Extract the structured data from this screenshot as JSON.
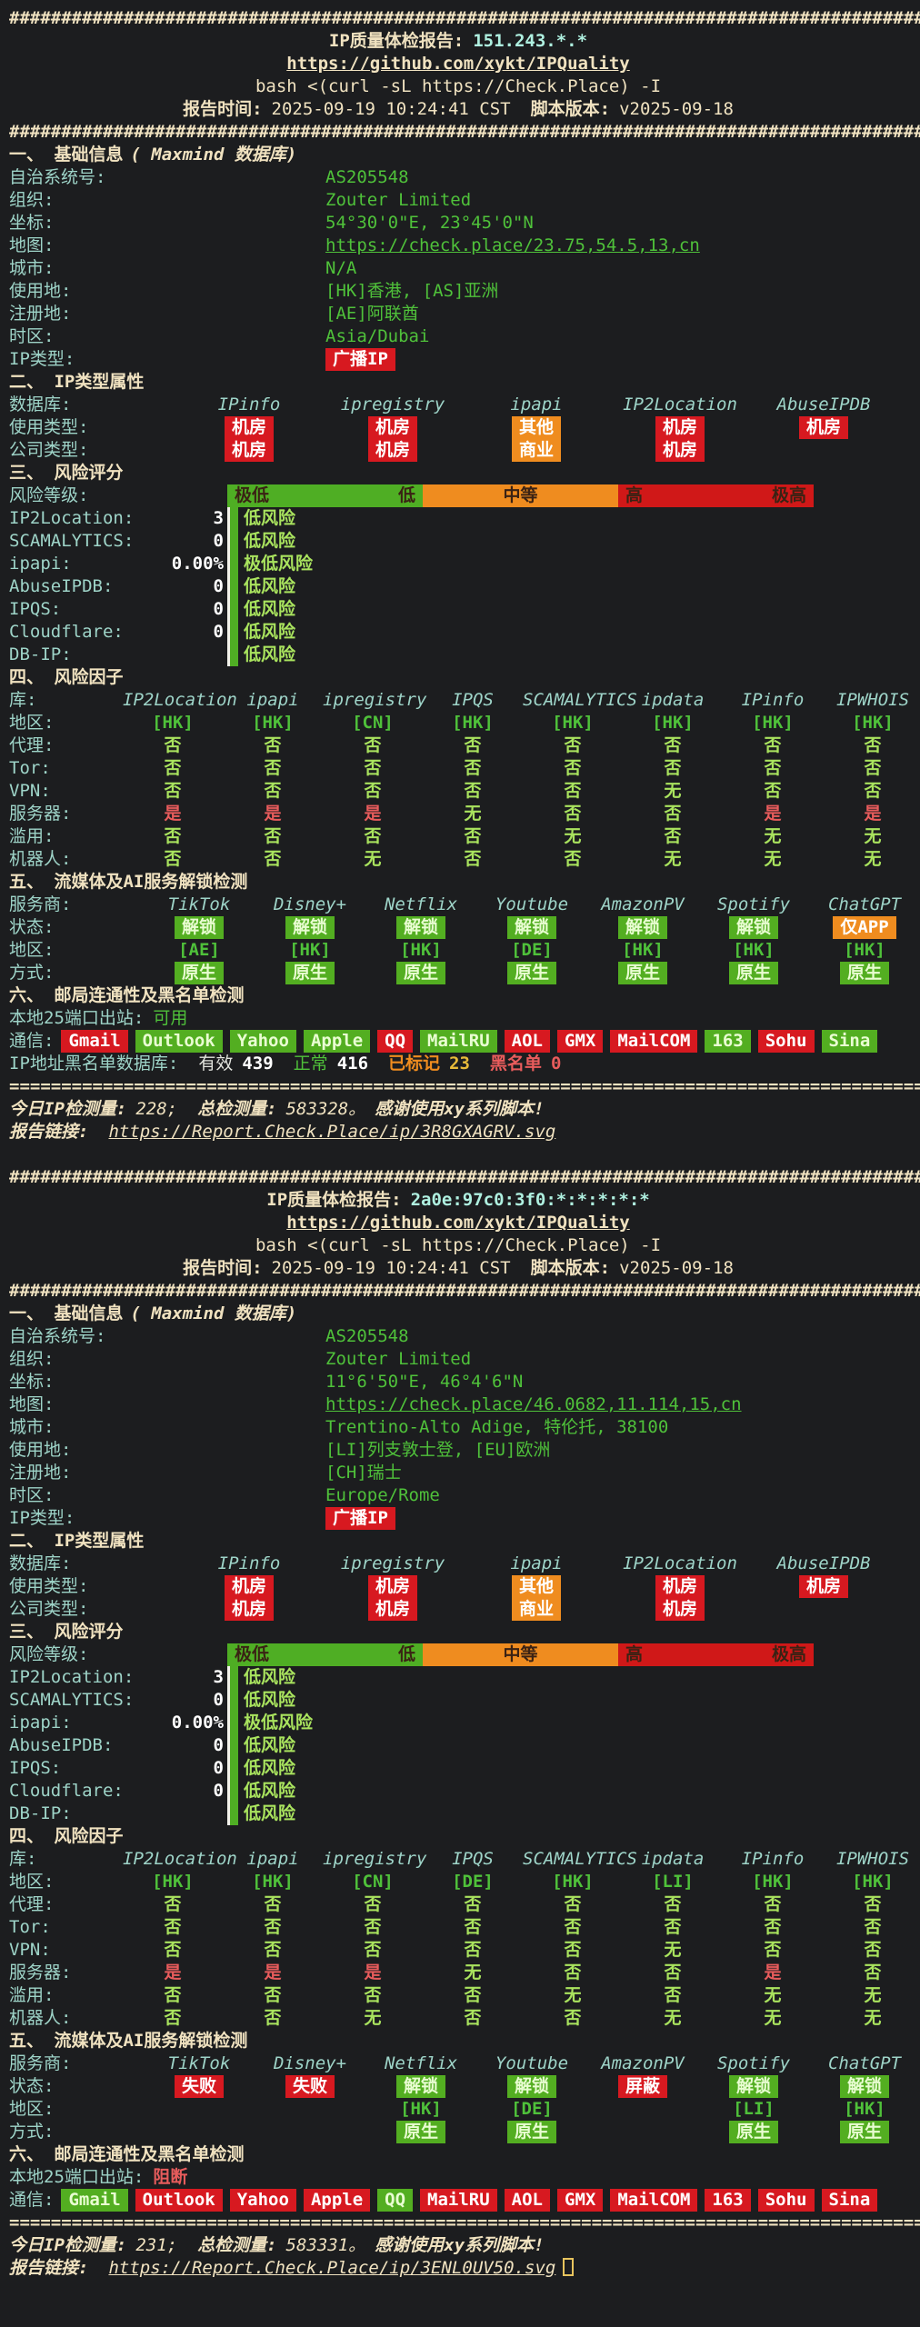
{
  "colors": {
    "background": "#1c1d1f",
    "cream_text": "#f0e2c0",
    "cyan_label": "#9ed4c8",
    "ip_cyan": "#aff0e0",
    "green_value": "#4fc13a",
    "light_green": "#a9e35e",
    "red_badge": "#d71920",
    "orange_badge": "#ef8c1f",
    "green_badge": "#53ae21",
    "bar_green": "#4fae24",
    "bar_orange": "#ef8c1f",
    "bar_red": "#d01818",
    "red_text": "#e85c5c",
    "yellow_value": "#e8bb3a"
  },
  "reports": [
    {
      "hash_line": "########################################################################################",
      "separator": "========================================================================================",
      "title_label": "IP质量体检报告:",
      "ip": "151.243.*.*",
      "repo_link": "https://github.com/xykt/IPQuality",
      "command": "bash <(curl -sL https://Check.Place) -I",
      "time_label": "报告时间:",
      "time": "2025-09-19 10:24:41 CST",
      "version_label": "脚本版本:",
      "version": "v2025-09-18",
      "basic": {
        "heading": "一、 基础信息",
        "heading_note": "( Maxmind 数据库)",
        "rows": [
          {
            "label": "自治系统号:",
            "value": "AS205548"
          },
          {
            "label": "组织:",
            "value": "Zouter Limited"
          },
          {
            "label": "坐标:",
            "value": "54°30'0\"E, 23°45'0\"N"
          },
          {
            "label": "地图:",
            "value": "https://check.place/23.75,54.5,13,cn"
          },
          {
            "label": "城市:",
            "value": "N/A"
          },
          {
            "label": "使用地:",
            "value": "[HK]香港, [AS]亚洲"
          },
          {
            "label": "注册地:",
            "value": "[AE]阿联酋"
          },
          {
            "label": "时区:",
            "value": "Asia/Dubai"
          },
          {
            "label": "IP类型:",
            "badge": "广播IP"
          }
        ]
      },
      "attrs": {
        "heading": "二、 IP类型属性",
        "db_label": "数据库:",
        "databases": [
          "IPinfo",
          "ipregistry",
          "ipapi",
          "IP2Location",
          "AbuseIPDB"
        ],
        "rows": [
          {
            "label": "使用类型:",
            "cells": [
              "机房",
              "机房",
              "其他",
              "机房",
              "机房"
            ]
          },
          {
            "label": "公司类型:",
            "cells": [
              "机房",
              "机房",
              "商业",
              "机房",
              ""
            ]
          }
        ]
      },
      "risk": {
        "heading": "三、 风险评分",
        "scale_label": "风险等级:",
        "scale": [
          {
            "style": "green",
            "left": "极低",
            "right": "低"
          },
          {
            "style": "orange",
            "center": "中等"
          },
          {
            "style": "red",
            "left": "高",
            "right": "极高"
          }
        ],
        "rows": [
          {
            "label": "IP2Location:",
            "score": "3",
            "verdict": "低风险"
          },
          {
            "label": "SCAMALYTICS:",
            "score": "0",
            "verdict": "低风险"
          },
          {
            "label": "ipapi:",
            "score": "0.00%",
            "verdict": "极低风险"
          },
          {
            "label": "AbuseIPDB:",
            "score": "0",
            "verdict": "低风险"
          },
          {
            "label": "IPQS:",
            "score": "0",
            "verdict": "低风险"
          },
          {
            "label": "Cloudflare:",
            "score": "0",
            "verdict": "低风险"
          },
          {
            "label": "DB-IP:",
            "score": "",
            "verdict": "低风险"
          }
        ]
      },
      "factors": {
        "heading": "四、 风险因子",
        "db_label": "库:",
        "databases": [
          "IP2Location",
          "ipapi",
          "ipregistry",
          "IPQS",
          "SCAMALYTICS",
          "ipdata",
          "IPinfo",
          "IPWHOIS"
        ],
        "rows": [
          {
            "label": "地区:",
            "cells": [
              "[HK]",
              "[HK]",
              "[CN]",
              "[HK]",
              "[HK]",
              "[HK]",
              "[HK]",
              "[HK]"
            ]
          },
          {
            "label": "代理:",
            "cells": [
              "否",
              "否",
              "否",
              "否",
              "否",
              "否",
              "否",
              "否"
            ]
          },
          {
            "label": "Tor:",
            "cells": [
              "否",
              "否",
              "否",
              "否",
              "否",
              "否",
              "否",
              "否"
            ]
          },
          {
            "label": "VPN:",
            "cells": [
              "否",
              "否",
              "否",
              "否",
              "否",
              "无",
              "否",
              "否"
            ]
          },
          {
            "label": "服务器:",
            "cells": [
              "是",
              "是",
              "是",
              "无",
              "否",
              "否",
              "是",
              "是"
            ]
          },
          {
            "label": "滥用:",
            "cells": [
              "否",
              "否",
              "否",
              "否",
              "无",
              "否",
              "无",
              "无"
            ]
          },
          {
            "label": "机器人:",
            "cells": [
              "否",
              "否",
              "无",
              "否",
              "否",
              "无",
              "无",
              "无"
            ]
          }
        ]
      },
      "media": {
        "heading": "五、 流媒体及AI服务解锁检测",
        "provider_label": "服务商:",
        "providers": [
          "TikTok",
          "Disney+",
          "Netflix",
          "Youtube",
          "AmazonPV",
          "Spotify",
          "ChatGPT"
        ],
        "rows": [
          {
            "label": "状态:",
            "cells": [
              "解锁",
              "解锁",
              "解锁",
              "解锁",
              "解锁",
              "解锁",
              "仅APP"
            ]
          },
          {
            "label": "地区:",
            "cells": [
              "[AE]",
              "[HK]",
              "[HK]",
              "[DE]",
              "[HK]",
              "[HK]",
              "[HK]"
            ]
          },
          {
            "label": "方式:",
            "cells": [
              "原生",
              "原生",
              "原生",
              "原生",
              "原生",
              "原生",
              "原生"
            ]
          }
        ]
      },
      "mail": {
        "heading": "六、 邮局连通性及黑名单检测",
        "port_label": "本地25端口出站:",
        "port_status": "可用",
        "port_ok": true,
        "comm_label": "通信:",
        "providers": [
          {
            "name": "Gmail",
            "ok": false
          },
          {
            "name": "Outlook",
            "ok": true
          },
          {
            "name": "Yahoo",
            "ok": true
          },
          {
            "name": "Apple",
            "ok": true
          },
          {
            "name": "QQ",
            "ok": false
          },
          {
            "name": "MailRU",
            "ok": true
          },
          {
            "name": "AOL",
            "ok": false
          },
          {
            "name": "GMX",
            "ok": false
          },
          {
            "name": "MailCOM",
            "ok": false
          },
          {
            "name": "163",
            "ok": true
          },
          {
            "name": "Sohu",
            "ok": false
          },
          {
            "name": "Sina",
            "ok": true
          }
        ],
        "blacklist": {
          "label": "IP地址黑名单数据库:",
          "stats": [
            {
              "name": "有效",
              "value": "439",
              "style": "plain"
            },
            {
              "name": "正常",
              "value": "416",
              "style": "green"
            },
            {
              "name": "已标记",
              "value": "23",
              "style": "orange"
            },
            {
              "name": "黑名单",
              "value": "0",
              "style": "red"
            }
          ]
        }
      },
      "footer": {
        "today_label": "今日IP检测量:",
        "today": "228;",
        "total_label": "总检测量:",
        "total": "583328。",
        "thanks": "感谢使用xy系列脚本!",
        "link_label": "报告链接:",
        "link": "https://Report.Check.Place/ip/3R8GXAGRV.svg",
        "cursor": false
      }
    },
    {
      "hash_line": "########################################################################################",
      "separator": "========================================================================================",
      "title_label": "IP质量体检报告:",
      "ip": "2a0e:97c0:3f0:*:*:*:*:*",
      "repo_link": "https://github.com/xykt/IPQuality",
      "command": "bash <(curl -sL https://Check.Place) -I",
      "time_label": "报告时间:",
      "time": "2025-09-19 10:24:41 CST",
      "version_label": "脚本版本:",
      "version": "v2025-09-18",
      "basic": {
        "heading": "一、 基础信息",
        "heading_note": "( Maxmind 数据库)",
        "rows": [
          {
            "label": "自治系统号:",
            "value": "AS205548"
          },
          {
            "label": "组织:",
            "value": "Zouter Limited"
          },
          {
            "label": "坐标:",
            "value": "11°6'50\"E, 46°4'6\"N"
          },
          {
            "label": "地图:",
            "value": "https://check.place/46.0682,11.114,15,cn"
          },
          {
            "label": "城市:",
            "value": "Trentino-Alto Adige, 特伦托, 38100"
          },
          {
            "label": "使用地:",
            "value": "[LI]列支敦士登, [EU]欧洲"
          },
          {
            "label": "注册地:",
            "value": "[CH]瑞士"
          },
          {
            "label": "时区:",
            "value": "Europe/Rome"
          },
          {
            "label": "IP类型:",
            "badge": "广播IP"
          }
        ]
      },
      "attrs": {
        "heading": "二、 IP类型属性",
        "db_label": "数据库:",
        "databases": [
          "IPinfo",
          "ipregistry",
          "ipapi",
          "IP2Location",
          "AbuseIPDB"
        ],
        "rows": [
          {
            "label": "使用类型:",
            "cells": [
              "机房",
              "机房",
              "其他",
              "机房",
              "机房"
            ]
          },
          {
            "label": "公司类型:",
            "cells": [
              "机房",
              "机房",
              "商业",
              "机房",
              ""
            ]
          }
        ]
      },
      "risk": {
        "heading": "三、 风险评分",
        "scale_label": "风险等级:",
        "scale": [
          {
            "style": "green",
            "left": "极低",
            "right": "低"
          },
          {
            "style": "orange",
            "center": "中等"
          },
          {
            "style": "red",
            "left": "高",
            "right": "极高"
          }
        ],
        "rows": [
          {
            "label": "IP2Location:",
            "score": "3",
            "verdict": "低风险"
          },
          {
            "label": "SCAMALYTICS:",
            "score": "0",
            "verdict": "低风险"
          },
          {
            "label": "ipapi:",
            "score": "0.00%",
            "verdict": "极低风险"
          },
          {
            "label": "AbuseIPDB:",
            "score": "0",
            "verdict": "低风险"
          },
          {
            "label": "IPQS:",
            "score": "0",
            "verdict": "低风险"
          },
          {
            "label": "Cloudflare:",
            "score": "0",
            "verdict": "低风险"
          },
          {
            "label": "DB-IP:",
            "score": "",
            "verdict": "低风险"
          }
        ]
      },
      "factors": {
        "heading": "四、 风险因子",
        "db_label": "库:",
        "databases": [
          "IP2Location",
          "ipapi",
          "ipregistry",
          "IPQS",
          "SCAMALYTICS",
          "ipdata",
          "IPinfo",
          "IPWHOIS"
        ],
        "rows": [
          {
            "label": "地区:",
            "cells": [
              "[HK]",
              "[HK]",
              "[CN]",
              "[DE]",
              "[HK]",
              "[LI]",
              "[HK]",
              "[HK]"
            ]
          },
          {
            "label": "代理:",
            "cells": [
              "否",
              "否",
              "否",
              "否",
              "否",
              "否",
              "否",
              "否"
            ]
          },
          {
            "label": "Tor:",
            "cells": [
              "否",
              "否",
              "否",
              "否",
              "否",
              "否",
              "否",
              "否"
            ]
          },
          {
            "label": "VPN:",
            "cells": [
              "否",
              "否",
              "否",
              "否",
              "否",
              "无",
              "否",
              "否"
            ]
          },
          {
            "label": "服务器:",
            "cells": [
              "是",
              "是",
              "是",
              "无",
              "否",
              "否",
              "是",
              "否"
            ]
          },
          {
            "label": "滥用:",
            "cells": [
              "否",
              "否",
              "否",
              "否",
              "无",
              "否",
              "无",
              "无"
            ]
          },
          {
            "label": "机器人:",
            "cells": [
              "否",
              "否",
              "无",
              "否",
              "否",
              "无",
              "无",
              "无"
            ]
          }
        ]
      },
      "media": {
        "heading": "五、 流媒体及AI服务解锁检测",
        "provider_label": "服务商:",
        "providers": [
          "TikTok",
          "Disney+",
          "Netflix",
          "Youtube",
          "AmazonPV",
          "Spotify",
          "ChatGPT"
        ],
        "rows": [
          {
            "label": "状态:",
            "cells": [
              "失败",
              "失败",
              "解锁",
              "解锁",
              "屏蔽",
              "解锁",
              "解锁"
            ]
          },
          {
            "label": "地区:",
            "cells": [
              "",
              "",
              "[HK]",
              "[DE]",
              "",
              "[LI]",
              "[HK]"
            ]
          },
          {
            "label": "方式:",
            "cells": [
              "",
              "",
              "原生",
              "原生",
              "",
              "原生",
              "原生"
            ]
          }
        ]
      },
      "mail": {
        "heading": "六、 邮局连通性及黑名单检测",
        "port_label": "本地25端口出站:",
        "port_status": "阻断",
        "port_ok": false,
        "comm_label": "通信:",
        "providers": [
          {
            "name": "Gmail",
            "ok": true
          },
          {
            "name": "Outlook",
            "ok": false
          },
          {
            "name": "Yahoo",
            "ok": false
          },
          {
            "name": "Apple",
            "ok": false
          },
          {
            "name": "QQ",
            "ok": true
          },
          {
            "name": "MailRU",
            "ok": false
          },
          {
            "name": "AOL",
            "ok": false
          },
          {
            "name": "GMX",
            "ok": false
          },
          {
            "name": "MailCOM",
            "ok": false
          },
          {
            "name": "163",
            "ok": false
          },
          {
            "name": "Sohu",
            "ok": false
          },
          {
            "name": "Sina",
            "ok": false
          }
        ],
        "blacklist": null
      },
      "footer": {
        "today_label": "今日IP检测量:",
        "today": "231;",
        "total_label": "总检测量:",
        "total": "583331。",
        "thanks": "感谢使用xy系列脚本!",
        "link_label": "报告链接:",
        "link": "https://Report.Check.Place/ip/3ENL0UV50.svg",
        "cursor": true
      }
    }
  ]
}
